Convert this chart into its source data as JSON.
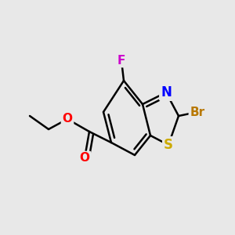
{
  "bg_color": "#e8e8e8",
  "bond_color": "#000000",
  "bond_width": 1.8,
  "atom_colors": {
    "F": "#cc00cc",
    "Br": "#b87800",
    "O": "#ff0000",
    "S": "#ccaa00",
    "N": "#0000ff",
    "C": "#000000"
  },
  "figsize": [
    3.0,
    3.0
  ],
  "dpi": 100
}
